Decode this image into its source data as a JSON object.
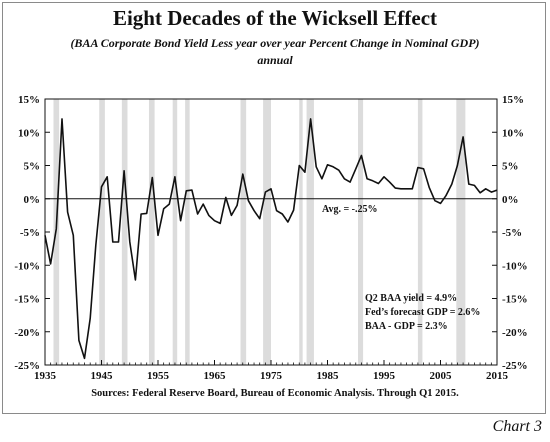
{
  "header": {
    "title": "Eight Decades of the Wicksell Effect",
    "subtitle": "(BAA Corporate Bond Yield Less year over year Percent Change in Nominal GDP)",
    "subtitle2": "annual"
  },
  "footer": {
    "source": "Sources: Federal Reserve Board, Bureau of Economic Analysis. Through  Q1 2015.",
    "chart_label": "Chart 3"
  },
  "annotations": {
    "avg": "Avg. = -.25%",
    "note1": "Q2 BAA yield = 4.9%",
    "note2": "Fed’s forecast GDP = 2.6%",
    "note3": "BAA - GDP = 2.3%"
  },
  "colors": {
    "line": "#111111",
    "recession": "#dcdcdc",
    "zero_line": "#111111"
  },
  "chart_data": {
    "type": "line",
    "title": "Eight Decades of the Wicksell Effect",
    "xlim": [
      1935,
      2015
    ],
    "ylim": [
      -25,
      15
    ],
    "x_ticks": [
      "1935",
      "1945",
      "1955",
      "1965",
      "1975",
      "1985",
      "1995",
      "2005",
      "2015"
    ],
    "y_ticks": [
      "15%",
      "10%",
      "5%",
      "0%",
      "-5%",
      "-10%",
      "-15%",
      "-20%",
      "-25%"
    ],
    "y_tick_values": [
      15,
      10,
      5,
      0,
      -5,
      -10,
      -15,
      -20,
      -25
    ],
    "x_tick_values": [
      1935,
      1945,
      1955,
      1965,
      1975,
      1985,
      1995,
      2005,
      2015
    ],
    "recessions": [
      [
        1936.5,
        1937.5
      ],
      [
        1944.6,
        1945.6
      ],
      [
        1948.6,
        1949.6
      ],
      [
        1953.4,
        1954.4
      ],
      [
        1957.6,
        1958.4
      ],
      [
        1959.8,
        1960.6
      ],
      [
        1969.6,
        1970.6
      ],
      [
        1973.6,
        1975.0
      ],
      [
        1980.0,
        1980.6
      ],
      [
        1981.3,
        1982.6
      ],
      [
        1990.4,
        1991.3
      ],
      [
        2001.0,
        2001.8
      ],
      [
        2007.8,
        2009.4
      ]
    ],
    "zero_line": 0,
    "series": [
      {
        "values": [
          [
            1935,
            -5.5
          ],
          [
            1936,
            -9.8
          ],
          [
            1937,
            -4.5
          ],
          [
            1938,
            12.0
          ],
          [
            1939,
            -2.0
          ],
          [
            1940,
            -5.5
          ],
          [
            1941,
            -21.3
          ],
          [
            1942,
            -24.0
          ],
          [
            1943,
            -18.0
          ],
          [
            1944,
            -7.0
          ],
          [
            1945,
            1.8
          ],
          [
            1946,
            3.3
          ],
          [
            1947,
            -6.5
          ],
          [
            1948,
            -6.5
          ],
          [
            1949,
            4.2
          ],
          [
            1950,
            -6.5
          ],
          [
            1951,
            -12.2
          ],
          [
            1952,
            -2.3
          ],
          [
            1953,
            -2.2
          ],
          [
            1954,
            3.2
          ],
          [
            1955,
            -5.5
          ],
          [
            1956,
            -1.5
          ],
          [
            1957,
            -0.8
          ],
          [
            1958,
            3.3
          ],
          [
            1959,
            -3.3
          ],
          [
            1960,
            1.2
          ],
          [
            1961,
            1.3
          ],
          [
            1962,
            -2.3
          ],
          [
            1963,
            -0.8
          ],
          [
            1964,
            -2.5
          ],
          [
            1965,
            -3.3
          ],
          [
            1966,
            -3.7
          ],
          [
            1967,
            0.2
          ],
          [
            1968,
            -2.5
          ],
          [
            1969,
            -1.0
          ],
          [
            1970,
            3.7
          ],
          [
            1971,
            -0.3
          ],
          [
            1972,
            -1.8
          ],
          [
            1973,
            -3.0
          ],
          [
            1974,
            1.0
          ],
          [
            1975,
            1.5
          ],
          [
            1976,
            -1.8
          ],
          [
            1977,
            -2.3
          ],
          [
            1978,
            -3.5
          ],
          [
            1979,
            -1.7
          ],
          [
            1980,
            5.0
          ],
          [
            1981,
            4.0
          ],
          [
            1982,
            12.0
          ],
          [
            1983,
            4.8
          ],
          [
            1984,
            3.0
          ],
          [
            1985,
            5.1
          ],
          [
            1986,
            4.8
          ],
          [
            1987,
            4.3
          ],
          [
            1988,
            3.0
          ],
          [
            1989,
            2.5
          ],
          [
            1990,
            4.5
          ],
          [
            1991,
            6.5
          ],
          [
            1992,
            3.0
          ],
          [
            1993,
            2.7
          ],
          [
            1994,
            2.3
          ],
          [
            1995,
            3.3
          ],
          [
            1996,
            2.5
          ],
          [
            1997,
            1.6
          ],
          [
            1998,
            1.5
          ],
          [
            1999,
            1.5
          ],
          [
            2000,
            1.5
          ],
          [
            2001,
            4.7
          ],
          [
            2002,
            4.5
          ],
          [
            2003,
            1.7
          ],
          [
            2004,
            -0.3
          ],
          [
            2005,
            -0.7
          ],
          [
            2006,
            0.5
          ],
          [
            2007,
            2.2
          ],
          [
            2008,
            5.0
          ],
          [
            2009,
            9.3
          ],
          [
            2010,
            2.2
          ],
          [
            2011,
            2.0
          ],
          [
            2012,
            0.9
          ],
          [
            2013,
            1.5
          ],
          [
            2014,
            1.0
          ],
          [
            2015,
            1.3
          ]
        ]
      }
    ],
    "avg_label": "Avg. = -.25%"
  }
}
